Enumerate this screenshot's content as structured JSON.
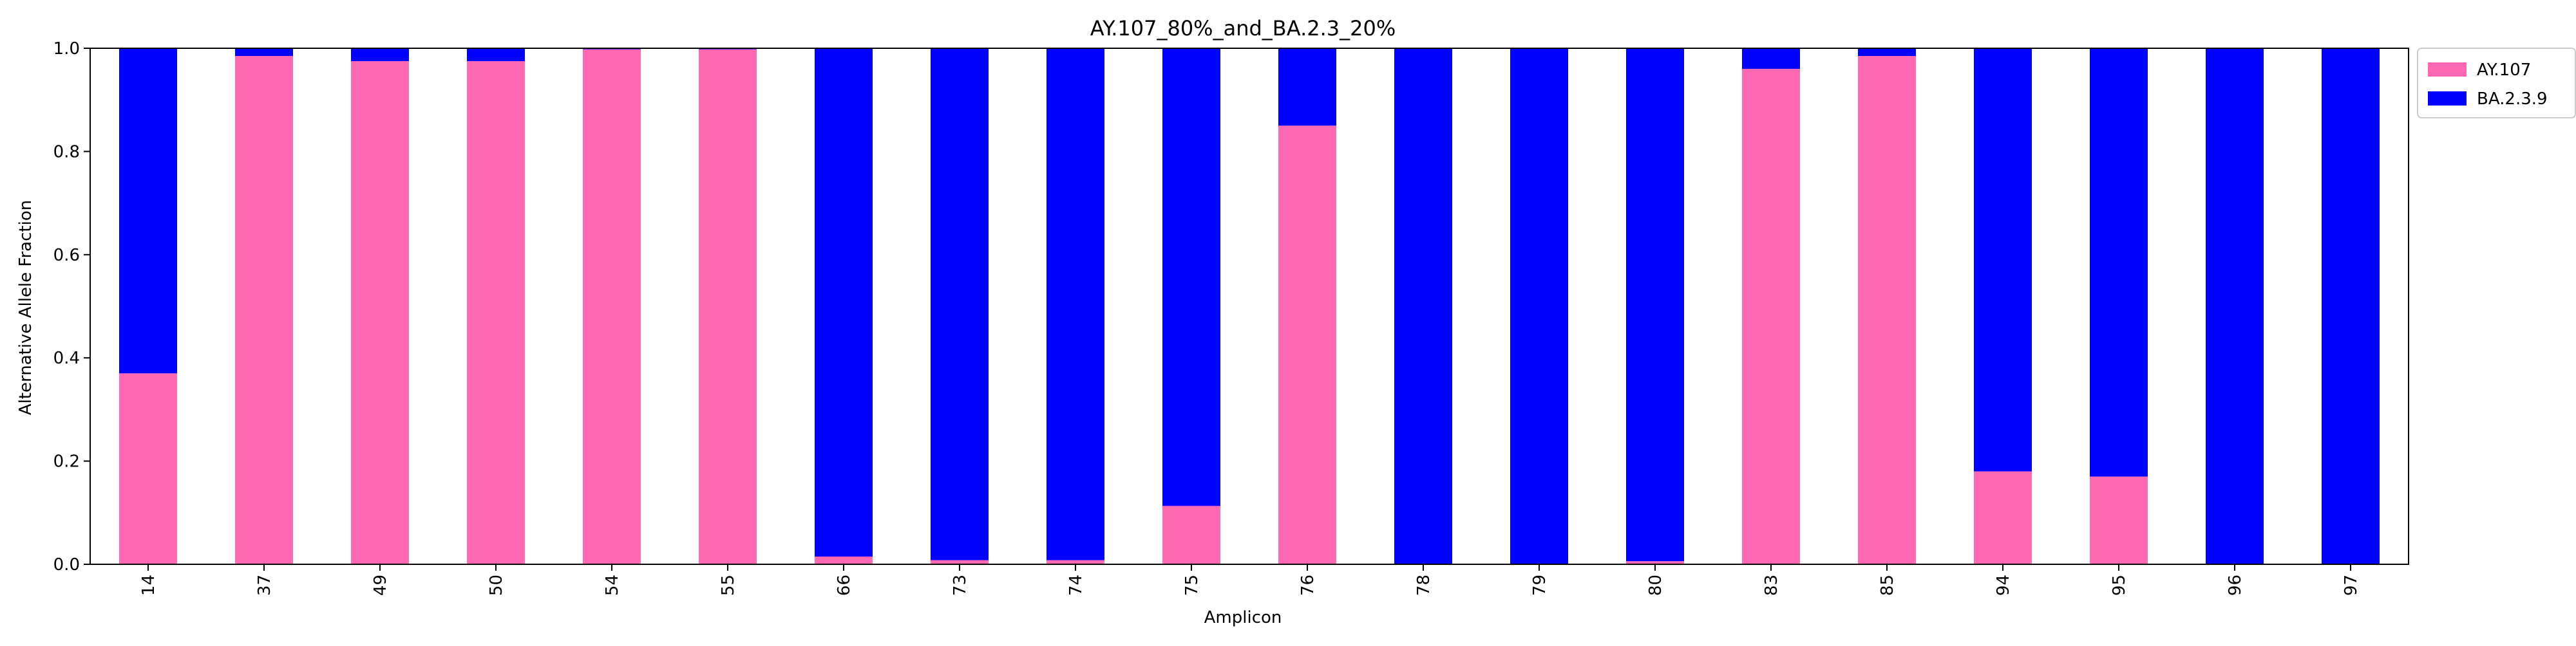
{
  "chart_data": {
    "type": "bar",
    "stacked": true,
    "title": "AY.107_80%_and_BA.2.3_20%",
    "xlabel": "Amplicon",
    "ylabel": "Alternative Allele Fraction",
    "ylim": [
      0,
      1.0
    ],
    "yticks": [
      "0.0",
      "0.2",
      "0.4",
      "0.6",
      "0.8",
      "1.0"
    ],
    "categories": [
      "14",
      "37",
      "49",
      "50",
      "54",
      "55",
      "66",
      "73",
      "74",
      "75",
      "76",
      "78",
      "79",
      "80",
      "83",
      "85",
      "94",
      "95",
      "96",
      "97"
    ],
    "series": [
      {
        "name": "AY.107",
        "color": "#ff69b4",
        "values": [
          0.37,
          0.985,
          0.975,
          0.975,
          0.998,
          0.998,
          0.015,
          0.008,
          0.008,
          0.113,
          0.85,
          0.0,
          0.0,
          0.006,
          0.96,
          0.985,
          0.18,
          0.17,
          0.0,
          0.0
        ]
      },
      {
        "name": "BA.2.3.9",
        "color": "#0000ff",
        "values": [
          0.63,
          0.015,
          0.025,
          0.025,
          0.002,
          0.002,
          0.985,
          0.992,
          0.992,
          0.887,
          0.15,
          1.0,
          1.0,
          0.994,
          0.04,
          0.015,
          0.82,
          0.83,
          1.0,
          1.0
        ]
      }
    ],
    "legend_position": "outside-top-right",
    "grid": false
  }
}
